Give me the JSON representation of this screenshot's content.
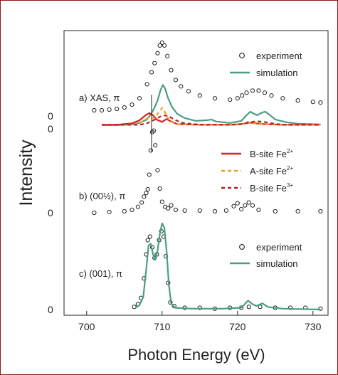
{
  "chart_data": {
    "type": "line",
    "xlabel": "Photon Energy (eV)",
    "ylabel": "Intensity",
    "xlim": [
      697,
      732
    ],
    "x_ticks": [
      "700",
      "710",
      "720",
      "730"
    ],
    "grid": false,
    "panels": [
      {
        "label": "a) XAS, π",
        "zero_label": "0",
        "legend": {
          "experiment": "experiment",
          "simulation": "simulation"
        },
        "series": [
          {
            "name": "experiment",
            "style": "open-circles",
            "color": "#222222",
            "points": [
              [
                701,
                0.01
              ],
              [
                702,
                0.01
              ],
              [
                703,
                0.02
              ],
              [
                704,
                0.03
              ],
              [
                705,
                0.05
              ],
              [
                706,
                0.09
              ],
              [
                707,
                0.18
              ],
              [
                708,
                0.38
              ],
              [
                708.6,
                0.55
              ],
              [
                709,
                0.68
              ],
              [
                709.4,
                0.82
              ],
              [
                709.7,
                0.93
              ],
              [
                710,
                0.97
              ],
              [
                710.3,
                0.93
              ],
              [
                710.7,
                0.78
              ],
              [
                711.2,
                0.58
              ],
              [
                711.8,
                0.44
              ],
              [
                712.5,
                0.35
              ],
              [
                713.5,
                0.28
              ],
              [
                715,
                0.22
              ],
              [
                717,
                0.18
              ],
              [
                719,
                0.16
              ],
              [
                720,
                0.18
              ],
              [
                720.6,
                0.22
              ],
              [
                721.2,
                0.26
              ],
              [
                722,
                0.29
              ],
              [
                722.8,
                0.29
              ],
              [
                723.6,
                0.26
              ],
              [
                724.5,
                0.22
              ],
              [
                726,
                0.18
              ],
              [
                728,
                0.15
              ],
              [
                730,
                0.13
              ],
              [
                731,
                0.12
              ]
            ]
          },
          {
            "name": "simulation",
            "style": "line",
            "color": "#4a9e7e",
            "points": [
              [
                702,
                -0.2
              ],
              [
                704,
                -0.2
              ],
              [
                706,
                -0.19
              ],
              [
                707,
                -0.17
              ],
              [
                708,
                -0.12
              ],
              [
                708.6,
                -0.03
              ],
              [
                709,
                0.05
              ],
              [
                709.4,
                0.15
              ],
              [
                709.8,
                0.3
              ],
              [
                710.1,
                0.37
              ],
              [
                710.4,
                0.32
              ],
              [
                710.8,
                0.18
              ],
              [
                711.3,
                0.06
              ],
              [
                712,
                -0.04
              ],
              [
                713,
                -0.1
              ],
              [
                714.5,
                -0.14
              ],
              [
                716,
                -0.13
              ],
              [
                716.5,
                -0.12
              ],
              [
                717.2,
                -0.15
              ],
              [
                719,
                -0.17
              ],
              [
                720.5,
                -0.14
              ],
              [
                721.2,
                -0.06
              ],
              [
                721.7,
                -0.01
              ],
              [
                722.2,
                -0.04
              ],
              [
                722.6,
                -0.06
              ],
              [
                723.3,
                -0.02
              ],
              [
                723.7,
                -0.01
              ],
              [
                724.3,
                -0.06
              ],
              [
                725,
                -0.12
              ],
              [
                726.5,
                -0.16
              ],
              [
                728,
                -0.18
              ],
              [
                731,
                -0.19
              ]
            ]
          }
        ]
      },
      {
        "label": "b) (00½), π",
        "zero_label": "0",
        "legend": {
          "b2": "B-site Fe",
          "a2": "A-site Fe",
          "b3": "B-site Fe",
          "b2_sup": "2+",
          "a2_sup": "2+",
          "b3_sup": "3+"
        },
        "series": [
          {
            "name": "experiment",
            "style": "open-circles",
            "color": "#222222",
            "points": [
              [
                701,
                0
              ],
              [
                703,
                0.01
              ],
              [
                705,
                0.02
              ],
              [
                706,
                0.04
              ],
              [
                706.8,
                0.08
              ],
              [
                707.3,
                0.14
              ],
              [
                707.6,
                0.22
              ],
              [
                707.9,
                0.27
              ],
              [
                708.1,
                0.32
              ],
              [
                708.3,
                0.52
              ],
              [
                708.5,
                0.85
              ],
              [
                708.7,
                1.1
              ],
              [
                708.9,
                1.12
              ],
              [
                709.1,
                0.92
              ],
              [
                709.4,
                0.58
              ],
              [
                709.7,
                0.33
              ],
              [
                710,
                0.15
              ],
              [
                710.4,
                0.08
              ],
              [
                710.8,
                0.06
              ],
              [
                711.2,
                0.1
              ],
              [
                711.8,
                0.04
              ],
              [
                713,
                0.03
              ],
              [
                715,
                0.03
              ],
              [
                717,
                0.02
              ],
              [
                718.5,
                0.03
              ],
              [
                719.5,
                0.09
              ],
              [
                720,
                0.13
              ],
              [
                720.5,
                0.05
              ],
              [
                721,
                0.1
              ],
              [
                721.5,
                0.14
              ],
              [
                722,
                0.1
              ],
              [
                722.8,
                0.04
              ],
              [
                725,
                0.02
              ],
              [
                728,
                0.02
              ],
              [
                731,
                0.02
              ]
            ]
          },
          {
            "name": "B-site Fe2+",
            "style": "line",
            "color": "#e02020",
            "points": [
              [
                702,
                1.2
              ],
              [
                704,
                1.2
              ],
              [
                706,
                1.22
              ],
              [
                707,
                1.26
              ],
              [
                707.8,
                1.33
              ],
              [
                708.3,
                1.36
              ],
              [
                708.8,
                1.33
              ],
              [
                709.3,
                1.27
              ],
              [
                710,
                1.24
              ],
              [
                710.6,
                1.28
              ],
              [
                711.1,
                1.25
              ],
              [
                712,
                1.21
              ],
              [
                715,
                1.2
              ],
              [
                719,
                1.2
              ],
              [
                720.5,
                1.21
              ],
              [
                721.6,
                1.23
              ],
              [
                722.4,
                1.22
              ],
              [
                723.5,
                1.21
              ],
              [
                726,
                1.2
              ],
              [
                731,
                1.2
              ]
            ]
          },
          {
            "name": "A-site Fe2+",
            "style": "dashed",
            "color": "#e8a11c",
            "points": [
              [
                702,
                1.2
              ],
              [
                705,
                1.2
              ],
              [
                706.5,
                1.21
              ],
              [
                707.5,
                1.25
              ],
              [
                708.2,
                1.3
              ],
              [
                708.7,
                1.29
              ],
              [
                709.2,
                1.32
              ],
              [
                709.6,
                1.38
              ],
              [
                710,
                1.43
              ],
              [
                710.4,
                1.37
              ],
              [
                711,
                1.25
              ],
              [
                712,
                1.21
              ],
              [
                715,
                1.2
              ],
              [
                719,
                1.2
              ],
              [
                720.5,
                1.21
              ],
              [
                721.3,
                1.24
              ],
              [
                721.8,
                1.22
              ],
              [
                722.6,
                1.23
              ],
              [
                723.5,
                1.21
              ],
              [
                726,
                1.2
              ],
              [
                731,
                1.2
              ]
            ]
          },
          {
            "name": "B-site Fe3+",
            "style": "dashed",
            "color": "#b22222",
            "points": [
              [
                702,
                1.2
              ],
              [
                705,
                1.2
              ],
              [
                707,
                1.2
              ],
              [
                708,
                1.22
              ],
              [
                709,
                1.27
              ],
              [
                709.7,
                1.31
              ],
              [
                710.2,
                1.33
              ],
              [
                710.8,
                1.32
              ],
              [
                711.5,
                1.28
              ],
              [
                712.5,
                1.23
              ],
              [
                714,
                1.21
              ],
              [
                716,
                1.2
              ],
              [
                719,
                1.2
              ],
              [
                720.5,
                1.21
              ],
              [
                721.5,
                1.23
              ],
              [
                722.5,
                1.25
              ],
              [
                723.5,
                1.24
              ],
              [
                724.5,
                1.22
              ],
              [
                726,
                1.2
              ],
              [
                731,
                1.2
              ]
            ]
          }
        ]
      },
      {
        "label": "c) (001), π",
        "zero_label": "0",
        "legend": {
          "experiment": "experiment",
          "simulation": "simulation"
        },
        "series": [
          {
            "name": "experiment",
            "style": "open-circles",
            "color": "#222222",
            "points": [
              [
                706.3,
                0.03
              ],
              [
                706.8,
                0.06
              ],
              [
                707.2,
                0.13
              ],
              [
                707.6,
                0.35
              ],
              [
                707.9,
                0.62
              ],
              [
                708.1,
                0.78
              ],
              [
                708.4,
                0.82
              ],
              [
                708.7,
                0.7
              ],
              [
                709,
                0.58
              ],
              [
                709.3,
                0.62
              ],
              [
                709.6,
                0.78
              ],
              [
                709.9,
                0.88
              ],
              [
                710.2,
                0.82
              ],
              [
                710.5,
                0.6
              ],
              [
                710.8,
                0.3
              ],
              [
                711.1,
                0.08
              ],
              [
                711.6,
                0.04
              ],
              [
                713,
                0.02
              ],
              [
                715,
                0.02
              ],
              [
                717,
                0.01
              ],
              [
                719,
                0.02
              ],
              [
                720.5,
                0.02
              ],
              [
                721.5,
                0.03
              ],
              [
                723,
                0.03
              ],
              [
                725,
                0.02
              ],
              [
                727,
                0.02
              ],
              [
                729,
                0.02
              ],
              [
                731,
                0.01
              ]
            ]
          },
          {
            "name": "simulation",
            "style": "line",
            "color": "#4a9e7e",
            "points": [
              [
                706.5,
                0.02
              ],
              [
                707,
                0.05
              ],
              [
                707.5,
                0.14
              ],
              [
                707.9,
                0.45
              ],
              [
                708.2,
                0.72
              ],
              [
                708.5,
                0.74
              ],
              [
                708.8,
                0.62
              ],
              [
                709.1,
                0.56
              ],
              [
                709.4,
                0.66
              ],
              [
                709.7,
                0.85
              ],
              [
                710,
                0.97
              ],
              [
                710.3,
                0.92
              ],
              [
                710.6,
                0.65
              ],
              [
                710.9,
                0.28
              ],
              [
                711.2,
                0.07
              ],
              [
                711.7,
                0.02
              ],
              [
                714,
                0.01
              ],
              [
                718,
                0.01
              ],
              [
                720.5,
                0.02
              ],
              [
                721.4,
                0.1
              ],
              [
                722,
                0.06
              ],
              [
                722.5,
                0.04
              ],
              [
                723.3,
                0.07
              ],
              [
                724,
                0.03
              ],
              [
                726,
                0.01
              ],
              [
                731,
                0
              ]
            ]
          }
        ]
      }
    ],
    "marker_line": {
      "x": 708.6
    }
  }
}
